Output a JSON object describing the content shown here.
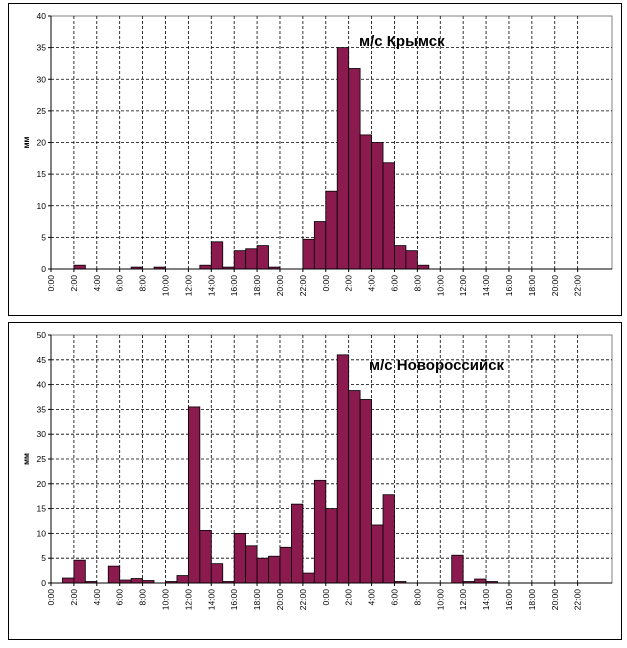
{
  "x_ticks": [
    "0:00",
    "2:00",
    "4:00",
    "6:00",
    "8:00",
    "10:00",
    "12:00",
    "14:00",
    "16:00",
    "18:00",
    "20:00",
    "22:00",
    "0:00",
    "2:00",
    "4:00",
    "6:00",
    "8:00",
    "10:00",
    "12:00",
    "14:00",
    "16:00",
    "18:00",
    "20:00",
    "22:00"
  ],
  "bar_color": "#8b1a4f",
  "chart_data": [
    {
      "type": "bar",
      "title": "м/с Крымск",
      "xlabel": "",
      "ylabel": "мм",
      "ylim": [
        0,
        40
      ],
      "y_ticks": [
        "0",
        "5",
        "10",
        "15",
        "20",
        "25",
        "30",
        "35",
        "40"
      ],
      "x_ticks": [
        "0:00",
        "2:00",
        "4:00",
        "6:00",
        "8:00",
        "10:00",
        "12:00",
        "14:00",
        "16:00",
        "18:00",
        "20:00",
        "22:00",
        "0:00",
        "2:00",
        "4:00",
        "6:00",
        "8:00",
        "10:00",
        "12:00",
        "14:00",
        "16:00",
        "18:00",
        "20:00",
        "22:00"
      ],
      "grid": true,
      "values": [
        0,
        0,
        0.6,
        0,
        0,
        0,
        0,
        0.3,
        0,
        0.3,
        0,
        0,
        0,
        0.6,
        4.3,
        0.3,
        2.9,
        3.2,
        3.7,
        0.3,
        0,
        0,
        4.7,
        7.5,
        12.3,
        35,
        31.7,
        21.2,
        20,
        16.8,
        3.7,
        2.9,
        0.6,
        0,
        0,
        0,
        0,
        0,
        0,
        0,
        0,
        0,
        0,
        0,
        0,
        0,
        0,
        0,
        0
      ]
    },
    {
      "type": "bar",
      "title": "м/с Новороссийск",
      "xlabel": "",
      "ylabel": "мм",
      "ylim": [
        0,
        50
      ],
      "y_ticks": [
        "0",
        "5",
        "10",
        "15",
        "20",
        "25",
        "30",
        "35",
        "40",
        "45",
        "50"
      ],
      "x_ticks": [
        "0:00",
        "2:00",
        "4:00",
        "6:00",
        "8:00",
        "10:00",
        "12:00",
        "14:00",
        "16:00",
        "18:00",
        "20:00",
        "22:00",
        "0:00",
        "2:00",
        "4:00",
        "6:00",
        "8:00",
        "10:00",
        "12:00",
        "14:00",
        "16:00",
        "18:00",
        "20:00",
        "22:00"
      ],
      "grid": true,
      "values": [
        0,
        1,
        4.6,
        0.3,
        0,
        3.4,
        0.6,
        0.9,
        0.5,
        0,
        0.3,
        1.5,
        35.5,
        10.6,
        3.9,
        0.3,
        10,
        7.5,
        5,
        5.4,
        7.2,
        15.9,
        2,
        20.7,
        15,
        46,
        38.8,
        37,
        11.7,
        17.8,
        0.3,
        0,
        0,
        0,
        0,
        5.6,
        0.3,
        0.8,
        0.3,
        0,
        0,
        0,
        0,
        0,
        0,
        0,
        0,
        0,
        0
      ]
    }
  ]
}
